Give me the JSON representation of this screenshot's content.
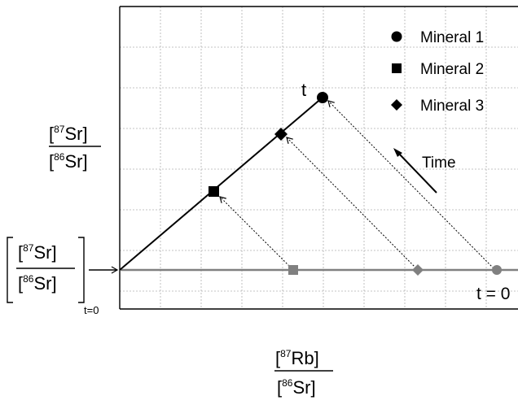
{
  "legend": {
    "items": [
      {
        "label": "Mineral 1",
        "marker": "circle-icon"
      },
      {
        "label": "Mineral 2",
        "marker": "square-icon"
      },
      {
        "label": "Mineral 3",
        "marker": "diamond-icon"
      }
    ]
  },
  "labels": {
    "t_final": "t",
    "t_zero": "t = 0",
    "time_arrow": "Time"
  },
  "y_axis_label": {
    "num_sup": "87",
    "num_el": "Sr",
    "den_sup": "86",
    "den_el": "Sr"
  },
  "initial_ratio_label": {
    "num_sup": "87",
    "num_el": "Sr",
    "den_sup": "86",
    "den_el": "Sr",
    "subscript": "t=0"
  },
  "x_axis_label": {
    "num_sup": "87",
    "num_el": "Rb",
    "den_sup": "86",
    "den_el": "Sr"
  },
  "colors": {
    "isochron_t": "#000000",
    "isochron_t0": "#808080",
    "grid": "#b0b0b0",
    "frame": "#000000"
  }
}
